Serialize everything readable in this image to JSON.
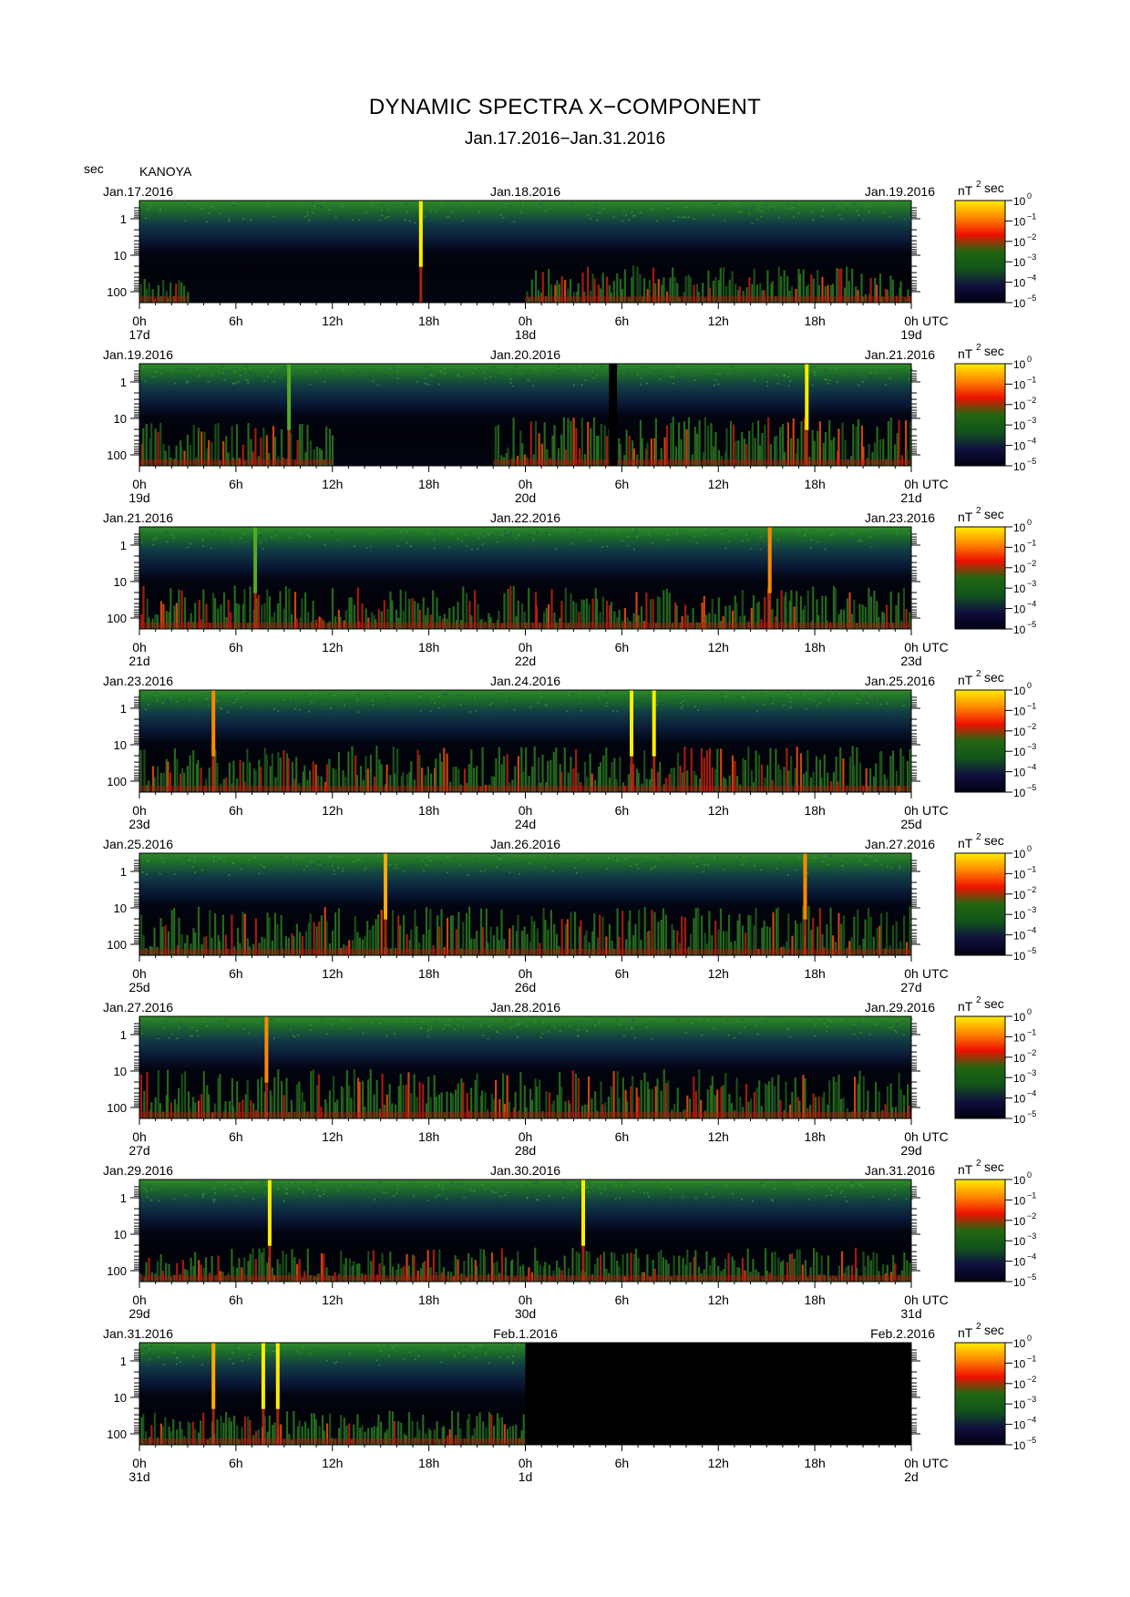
{
  "title": "DYNAMIC SPECTRA X−COMPONENT",
  "subtitle": "Jan.17.2016−Jan.31.2016",
  "sec_label": "sec",
  "station": "KANOYA",
  "chart_data": {
    "type": "heatmap",
    "y_axis": {
      "unit": "sec",
      "scale": "log",
      "tick_labels": [
        "1",
        "10",
        "100"
      ]
    },
    "x_axis": {
      "unit": "UTC",
      "tick_labels": [
        "0h",
        "6h",
        "12h",
        "18h",
        "0h",
        "6h",
        "12h",
        "18h",
        "0h"
      ]
    },
    "colorbar": {
      "unit_label": "nT",
      "unit_sup": "2",
      "unit_suffix": "sec",
      "tick_labels": [
        "10",
        "10",
        "10",
        "10",
        "10",
        "10"
      ],
      "tick_exponents": [
        "0",
        "−1",
        "−2",
        "−3",
        "−4",
        "−5"
      ],
      "colors": [
        "#ffee00",
        "#ff8800",
        "#ee1100",
        "#226611",
        "#11551a",
        "#101040",
        "#000010"
      ]
    },
    "panels": [
      {
        "date_left": "Jan.17.2016",
        "date_mid": "Jan.18.2016",
        "date_right": "Jan.19.2016",
        "day_labels": [
          "17d",
          "18d",
          "19d"
        ],
        "spikes": [
          {
            "hour": 17.5,
            "color": "#ffee00"
          }
        ],
        "bursts": [
          {
            "start_hour": 24,
            "end_hour": 48,
            "level": 0.6
          },
          {
            "start_hour": 0,
            "end_hour": 3,
            "level": 0.4
          }
        ],
        "no_data": []
      },
      {
        "date_left": "Jan.19.2016",
        "date_mid": "Jan.20.2016",
        "date_right": "Jan.21.2016",
        "day_labels": [
          "19d",
          "20d",
          "21d"
        ],
        "spikes": [
          {
            "hour": 41.5,
            "color": "#ffee00"
          },
          {
            "hour": 9.3,
            "color": "#55aa22"
          }
        ],
        "bursts": [
          {
            "start_hour": 0,
            "end_hour": 12,
            "level": 0.7
          },
          {
            "start_hour": 22,
            "end_hour": 48,
            "level": 0.8
          }
        ],
        "no_data": [
          {
            "start_hour": 29.2,
            "end_hour": 29.7
          }
        ]
      },
      {
        "date_left": "Jan.21.2016",
        "date_mid": "Jan.22.2016",
        "date_right": "Jan.23.2016",
        "day_labels": [
          "21d",
          "22d",
          "23d"
        ],
        "spikes": [
          {
            "hour": 7.2,
            "color": "#55aa22"
          },
          {
            "hour": 39.2,
            "color": "#ff8800"
          }
        ],
        "bursts": [
          {
            "start_hour": 0,
            "end_hour": 48,
            "level": 0.7
          }
        ],
        "no_data": []
      },
      {
        "date_left": "Jan.23.2016",
        "date_mid": "Jan.24.2016",
        "date_right": "Jan.25.2016",
        "day_labels": [
          "23d",
          "24d",
          "25d"
        ],
        "spikes": [
          {
            "hour": 30.6,
            "color": "#ffee00"
          },
          {
            "hour": 32.0,
            "color": "#ffee00"
          },
          {
            "hour": 4.6,
            "color": "#ff8800"
          }
        ],
        "bursts": [
          {
            "start_hour": 0,
            "end_hour": 48,
            "level": 0.75
          }
        ],
        "no_data": []
      },
      {
        "date_left": "Jan.25.2016",
        "date_mid": "Jan.26.2016",
        "date_right": "Jan.27.2016",
        "day_labels": [
          "25d",
          "26d",
          "27d"
        ],
        "spikes": [
          {
            "hour": 15.3,
            "color": "#ffaa00"
          },
          {
            "hour": 41.4,
            "color": "#ff8800"
          }
        ],
        "bursts": [
          {
            "start_hour": 0,
            "end_hour": 48,
            "level": 0.8
          }
        ],
        "no_data": []
      },
      {
        "date_left": "Jan.27.2016",
        "date_mid": "Jan.28.2016",
        "date_right": "Jan.29.2016",
        "day_labels": [
          "27d",
          "28d",
          "29d"
        ],
        "spikes": [
          {
            "hour": 7.9,
            "color": "#ff8800"
          }
        ],
        "bursts": [
          {
            "start_hour": 0,
            "end_hour": 48,
            "level": 0.8
          }
        ],
        "no_data": []
      },
      {
        "date_left": "Jan.29.2016",
        "date_mid": "Jan.30.2016",
        "date_right": "Jan.31.2016",
        "day_labels": [
          "29d",
          "30d",
          "31d"
        ],
        "spikes": [
          {
            "hour": 8.1,
            "color": "#ffee00"
          },
          {
            "hour": 27.6,
            "color": "#ffee00"
          }
        ],
        "bursts": [
          {
            "start_hour": 0,
            "end_hour": 48,
            "level": 0.55
          }
        ],
        "no_data": []
      },
      {
        "date_left": "Jan.31.2016",
        "date_mid": "Feb.1.2016",
        "date_right": "Feb.2.2016",
        "day_labels": [
          "31d",
          "1d",
          "2d"
        ],
        "spikes": [
          {
            "hour": 4.6,
            "color": "#ffaa00"
          },
          {
            "hour": 7.7,
            "color": "#ffee00"
          },
          {
            "hour": 8.6,
            "color": "#ffee00"
          }
        ],
        "bursts": [
          {
            "start_hour": 0,
            "end_hour": 24,
            "level": 0.55
          }
        ],
        "no_data": [
          {
            "start_hour": 24,
            "end_hour": 48
          }
        ]
      }
    ]
  }
}
